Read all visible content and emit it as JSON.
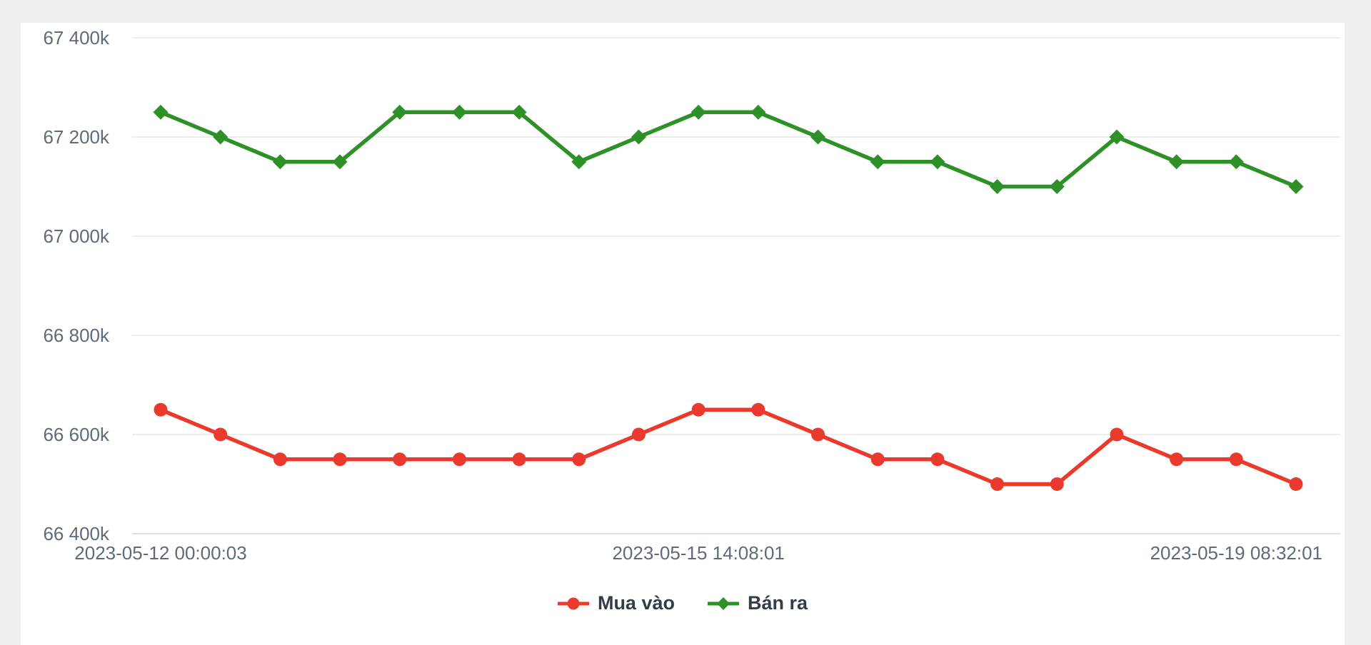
{
  "page": {
    "background_color": "#edeff3",
    "card_color": "#ffffff"
  },
  "chart_data": {
    "type": "line",
    "title": "",
    "grid": "horizontal",
    "legend_position": "bottom-center",
    "num_points": 20,
    "x_tick_labels": [
      "2023-05-12 00:00:03",
      "2023-05-15 14:08:01",
      "2023-05-19 08:32:01"
    ],
    "x_tick_point_indices": [
      0,
      9,
      18
    ],
    "y_axis": {
      "min": 66400,
      "max": 67400,
      "tick_interval": 200,
      "tick_labels": [
        "66 400k",
        "66 600k",
        "66 800k",
        "67 000k",
        "67 200k",
        "67 400k"
      ]
    },
    "series": [
      {
        "name": "Mua vào",
        "color": "#e93a2d",
        "marker": "circle",
        "values": [
          66650,
          66600,
          66550,
          66550,
          66550,
          66550,
          66550,
          66550,
          66600,
          66650,
          66650,
          66600,
          66550,
          66550,
          66500,
          66500,
          66600,
          66550,
          66550,
          66500
        ]
      },
      {
        "name": "Bán ra",
        "color": "#2e9128",
        "marker": "diamond",
        "values": [
          67250,
          67200,
          67150,
          67150,
          67250,
          67250,
          67250,
          67150,
          67200,
          67250,
          67250,
          67200,
          67150,
          67150,
          67100,
          67100,
          67200,
          67150,
          67150,
          67100
        ]
      }
    ],
    "style": {
      "axis_text_color": "#5f6b78",
      "gridline_color": "#e7e7e7",
      "axis_line_color": "#ccd6eb",
      "legend_text_color": "#333c47"
    }
  }
}
